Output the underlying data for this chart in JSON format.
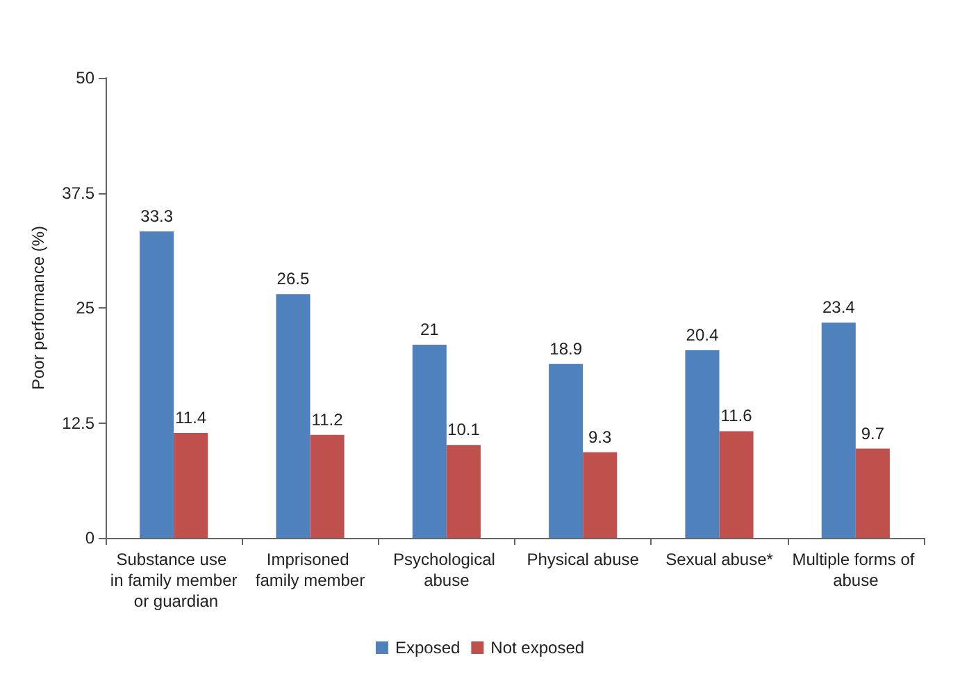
{
  "chart_data": {
    "type": "bar",
    "ylabel": "Poor performance (%)",
    "categories": [
      "Substance use in family member or guardian",
      "Imprisoned family member",
      "Psychological abuse",
      "Physical abuse",
      "Sexual abuse*",
      "Multiple forms of abuse"
    ],
    "series": [
      {
        "name": "Exposed",
        "color": "#4f81bd",
        "values": [
          33.3,
          26.5,
          21,
          18.9,
          20.4,
          23.4
        ]
      },
      {
        "name": "Not exposed",
        "color": "#c0504d",
        "values": [
          11.4,
          11.2,
          10.1,
          9.3,
          11.6,
          9.7
        ]
      }
    ],
    "ylim": [
      0,
      50
    ],
    "yticks": [
      0,
      12.5,
      25,
      37.5,
      50
    ],
    "grid": false,
    "legend": "bottom",
    "data_labels": true
  }
}
